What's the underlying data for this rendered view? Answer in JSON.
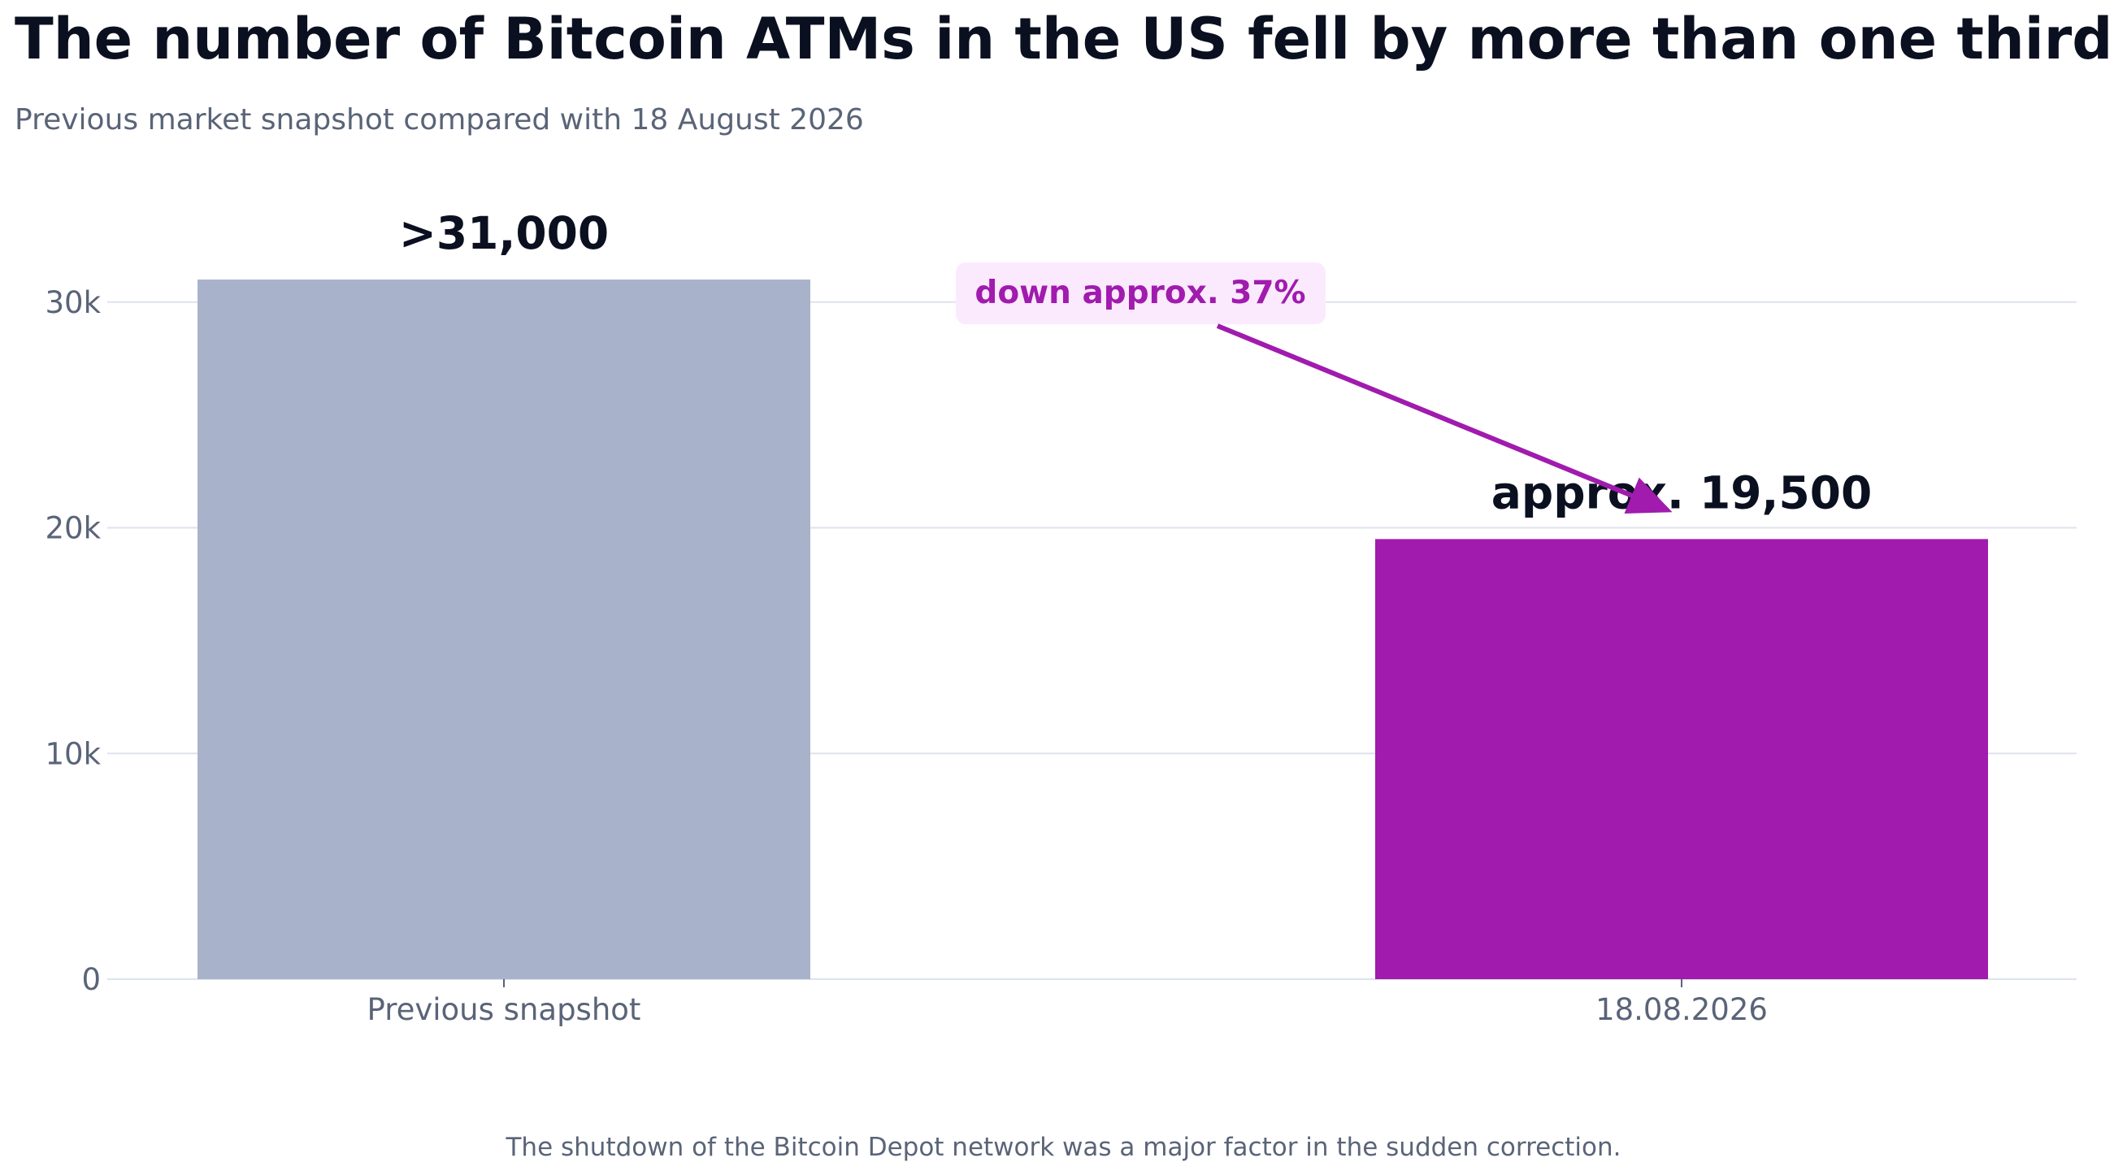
{
  "title": "The number of Bitcoin ATMs in the US fell by more than one third",
  "subtitle": "Previous market snapshot compared with 18 August 2026",
  "footnote": "The shutdown of the Bitcoin Depot network was a major factor in the sudden correction.",
  "chart_data": {
    "type": "bar",
    "categories": [
      "Previous snapshot",
      "18.08.2026"
    ],
    "values": [
      31000,
      19500
    ],
    "value_labels": [
      ">31,000",
      "approx. 19,500"
    ],
    "bar_colors": [
      "#a8b3cb",
      "#a01bae"
    ],
    "yticks": [
      0,
      10000,
      20000,
      30000
    ],
    "ytick_labels": [
      "0",
      "10k",
      "20k",
      "30k"
    ],
    "ylim": [
      0,
      31000
    ],
    "grid": true,
    "xlabel": "",
    "ylabel": "",
    "annotation": {
      "text": "down approx. 37%",
      "color": "#a01bae",
      "background": "#fbeafd"
    },
    "colors": {
      "grid": "#dde2ee",
      "text": "#0b1020",
      "muted": "#5a6478"
    }
  }
}
